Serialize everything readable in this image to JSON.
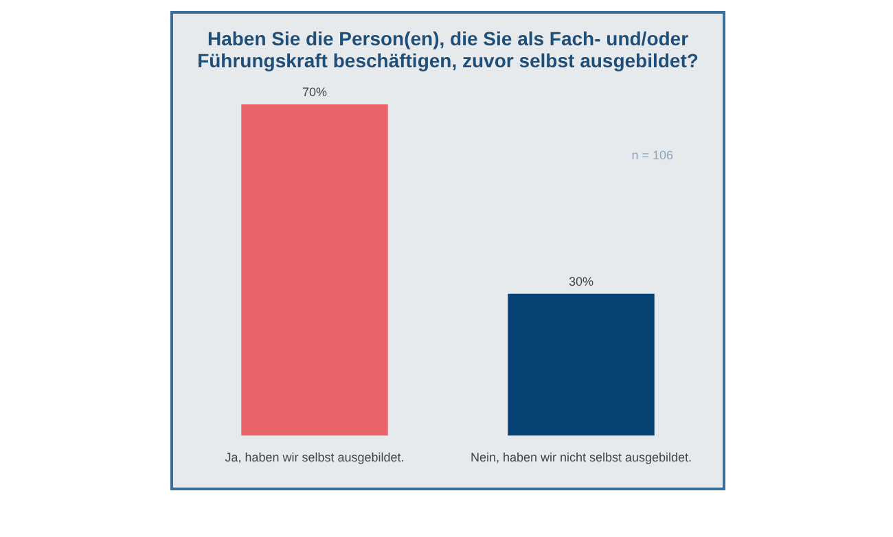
{
  "chart_data": {
    "type": "bar",
    "title": "Haben Sie die Person(en), die Sie als Fach- und/oder Führungskraft beschäftigen, zuvor selbst ausgebildet?",
    "categories": [
      "Ja, haben wir selbst ausgebildet.",
      "Nein, haben wir nicht selbst ausgebildet."
    ],
    "values": [
      70,
      30
    ],
    "colors": [
      "#e8636a",
      "#064273"
    ],
    "value_labels": [
      "70%",
      "30%"
    ],
    "annotations": [
      "n = 106"
    ],
    "legend": false,
    "grid": false
  }
}
